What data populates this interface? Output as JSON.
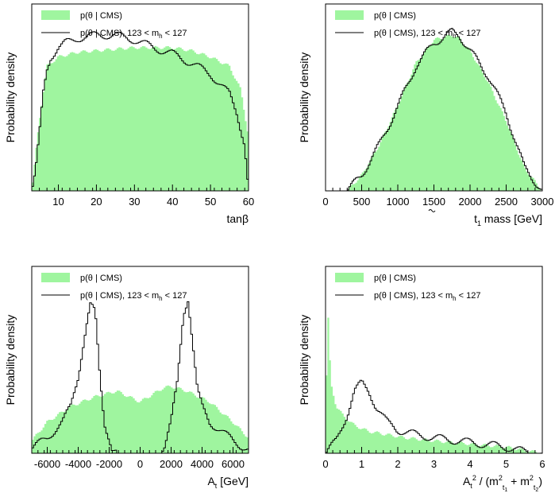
{
  "chart_data": [
    {
      "type": "histogram",
      "xlabel": "tanβ",
      "ylabel": "Probability density",
      "xlim": [
        3,
        60
      ],
      "ylim": [
        0,
        1.2
      ],
      "xticks": [
        10,
        20,
        30,
        40,
        50,
        60
      ],
      "xtick_labels": [
        "10",
        "20",
        "30",
        "40",
        "50",
        "60"
      ],
      "legend_position": "top-left",
      "legend": [
        "p(θ | CMS)",
        "p(θ | CMS), 123 < m",
        "h",
        " < 127"
      ],
      "series": [
        {
          "style": "filled",
          "color": "#9ff59f",
          "x": [
            3,
            5,
            7,
            10,
            15,
            20,
            25,
            30,
            35,
            40,
            45,
            50,
            55,
            58,
            60
          ],
          "y": [
            0.0,
            0.45,
            0.8,
            0.86,
            0.89,
            0.9,
            0.91,
            0.92,
            0.92,
            0.92,
            0.9,
            0.86,
            0.8,
            0.65,
            0.35
          ]
        },
        {
          "style": "line",
          "color": "#000000",
          "x": [
            3,
            4,
            5,
            6,
            7,
            8,
            10,
            12,
            15,
            20,
            25,
            30,
            35,
            40,
            45,
            50,
            55,
            57,
            59,
            60
          ],
          "y": [
            0.0,
            0.12,
            0.35,
            0.62,
            0.78,
            0.86,
            0.92,
            0.95,
            0.98,
            1.0,
            1.0,
            0.97,
            0.92,
            0.88,
            0.82,
            0.75,
            0.62,
            0.5,
            0.3,
            0.0
          ]
        }
      ]
    },
    {
      "type": "histogram",
      "xlabel": "mass  [GeV]",
      "xlabel_symbol": "t",
      "xlabel_symbol_subscript": "1",
      "ylabel": "Probability density",
      "xlim": [
        0,
        3000
      ],
      "ylim": [
        0,
        1.2
      ],
      "xticks": [
        0,
        500,
        1000,
        1500,
        2000,
        2500,
        3000
      ],
      "xtick_labels": [
        "0",
        "500",
        "1000",
        "1500",
        "2000",
        "2500",
        "3000"
      ],
      "legend_position": "top-left",
      "legend": [
        "p(θ | CMS)",
        "p(θ | CMS), 123 < m",
        "h",
        " < 127"
      ],
      "series": [
        {
          "style": "filled",
          "color": "#9ff59f",
          "x": [
            300,
            500,
            750,
            1000,
            1250,
            1500,
            1750,
            1850,
            2000,
            2250,
            2500,
            2750,
            3000
          ],
          "y": [
            0.0,
            0.1,
            0.3,
            0.55,
            0.82,
            0.97,
            1.0,
            0.98,
            0.9,
            0.7,
            0.45,
            0.15,
            0.0
          ]
        },
        {
          "style": "line",
          "color": "#000000",
          "x": [
            300,
            500,
            750,
            1000,
            1250,
            1500,
            1750,
            1850,
            2000,
            2250,
            2500,
            2750,
            3000
          ],
          "y": [
            0.0,
            0.1,
            0.3,
            0.54,
            0.8,
            0.95,
            1.02,
            1.0,
            0.9,
            0.74,
            0.5,
            0.15,
            0.0
          ]
        }
      ]
    },
    {
      "type": "histogram",
      "xlabel": "A",
      "xlabel_subscript": "t",
      "xlabel_unit": " [GeV]",
      "ylabel": "Probability density",
      "xlim": [
        -7000,
        7000
      ],
      "ylim": [
        0,
        1.2
      ],
      "xticks": [
        -6000,
        -4000,
        -2000,
        0,
        2000,
        4000,
        6000
      ],
      "xtick_labels": [
        "-6000",
        "-4000",
        "-2000",
        "0",
        "2000",
        "4000",
        "6000"
      ],
      "legend_position": "top-left",
      "legend": [
        "p(θ | CMS)",
        "p(θ | CMS), 123 < m",
        "h",
        " < 127"
      ],
      "series": [
        {
          "style": "filled",
          "color": "#9ff59f",
          "x": [
            -7000,
            -6000,
            -4500,
            -3000,
            -1500,
            0,
            1500,
            2000,
            3000,
            4500,
            6000,
            7000
          ],
          "y": [
            0.08,
            0.2,
            0.3,
            0.36,
            0.4,
            0.33,
            0.42,
            0.43,
            0.4,
            0.33,
            0.2,
            0.1
          ]
        },
        {
          "style": "line",
          "color": "#000000",
          "x": [
            -7000,
            -6000,
            -5000,
            -4500,
            -4000,
            -3500,
            -3200,
            -2900,
            -2600,
            -2300,
            -2000,
            -1800,
            -1500,
            0,
            1200,
            1600,
            2000,
            2400,
            2800,
            3100,
            3400,
            3700,
            4000,
            4500,
            5500,
            6500,
            7000
          ],
          "y": [
            0.03,
            0.1,
            0.2,
            0.3,
            0.5,
            0.8,
            0.95,
            0.9,
            0.5,
            0.2,
            0.1,
            0.02,
            0.0,
            0.0,
            0.0,
            0.05,
            0.2,
            0.45,
            0.9,
            1.0,
            0.7,
            0.4,
            0.3,
            0.2,
            0.12,
            0.05,
            0.02
          ]
        }
      ]
    },
    {
      "type": "histogram",
      "xlabel_parts": [
        "A",
        "t",
        "2",
        " / (m",
        "2",
        "t",
        "1",
        " + m",
        "2",
        "t",
        "2",
        ")"
      ],
      "ylabel": "Probability density",
      "xlim": [
        0,
        6
      ],
      "ylim": [
        0,
        1.2
      ],
      "xticks": [
        0,
        1,
        2,
        3,
        4,
        5,
        6
      ],
      "xtick_labels": [
        "0",
        "1",
        "2",
        "3",
        "4",
        "5",
        "6"
      ],
      "legend_position": "top-left",
      "legend": [
        "p(θ | CMS)",
        "p(θ | CMS), 123 < m",
        "h",
        " < 127"
      ],
      "series": [
        {
          "style": "filled",
          "color": "#9ff59f",
          "x": [
            0,
            0.05,
            0.15,
            0.3,
            0.5,
            0.8,
            1.2,
            1.7,
            2.2,
            3.0,
            4.0,
            5.0,
            5.5,
            6.0
          ],
          "y": [
            0.0,
            1.0,
            0.45,
            0.3,
            0.24,
            0.18,
            0.14,
            0.12,
            0.1,
            0.08,
            0.06,
            0.04,
            0.02,
            0.0
          ]
        },
        {
          "style": "line",
          "color": "#000000",
          "x": [
            0,
            0.3,
            0.6,
            0.8,
            1.0,
            1.2,
            1.4,
            1.7,
            2.0,
            2.5,
            3.0,
            4.0,
            5.0,
            5.5,
            6.0
          ],
          "y": [
            0.0,
            0.08,
            0.25,
            0.4,
            0.45,
            0.4,
            0.3,
            0.2,
            0.15,
            0.12,
            0.1,
            0.07,
            0.04,
            0.01,
            0.0
          ]
        }
      ]
    }
  ]
}
